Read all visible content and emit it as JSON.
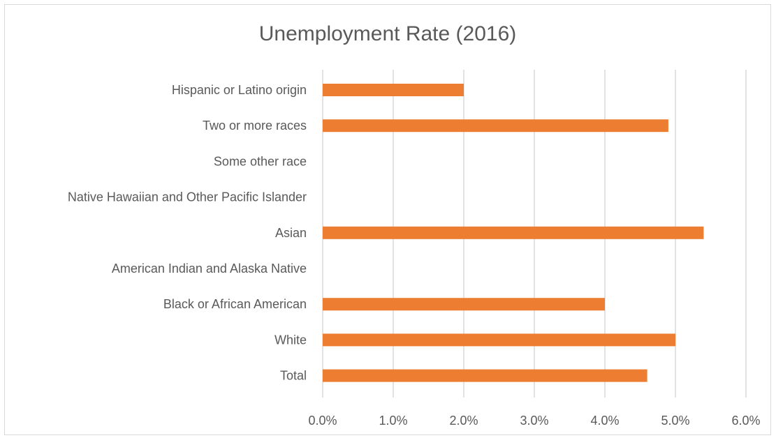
{
  "chart_data": {
    "type": "bar",
    "orientation": "horizontal",
    "title": "Unemployment Rate (2016)",
    "categories": [
      "Hispanic or Latino origin",
      "Two or more races",
      "Some other race",
      "Native Hawaiian and Other Pacific Islander",
      "Asian",
      "American Indian and Alaska Native",
      "Black or African American",
      "White",
      "Total"
    ],
    "values": [
      2.0,
      4.9,
      null,
      null,
      5.4,
      null,
      4.0,
      5.0,
      4.6
    ],
    "xlim": [
      0,
      6
    ],
    "xticks": [
      "0.0%",
      "1.0%",
      "2.0%",
      "3.0%",
      "4.0%",
      "5.0%",
      "6.0%"
    ],
    "grid": true,
    "legend": "none",
    "bar_color": "#ED7D31"
  }
}
